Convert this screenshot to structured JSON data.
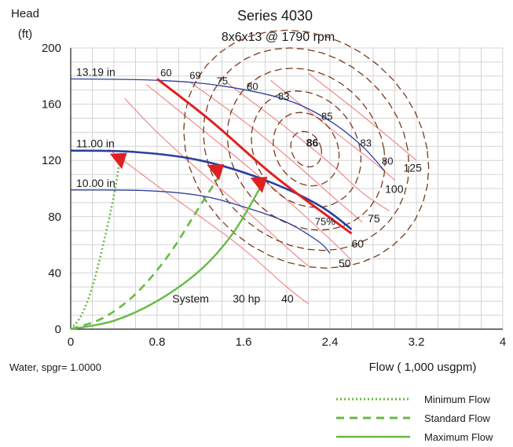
{
  "chart_data": {
    "type": "line",
    "title": "Series 4030",
    "subtitle": "8x6x13 @ 1790 rpm",
    "ylabel_line1": "Head",
    "ylabel_line2": "(ft)",
    "xlabel": "Flow ( 1,000 usgpm)",
    "footnote": "Water, spgr= 1.0000",
    "xlim": [
      0,
      4
    ],
    "ylim": [
      0,
      200
    ],
    "x_ticks": [
      0,
      0.8,
      1.6,
      2.4,
      3.2,
      4
    ],
    "x_tick_labels": [
      "0",
      "0.8",
      "1.6",
      "2.4",
      "3.2",
      "4"
    ],
    "y_ticks": [
      0,
      40,
      80,
      120,
      160,
      200
    ],
    "y_tick_labels": [
      "0",
      "40",
      "80",
      "120",
      "160",
      "200"
    ],
    "grid": true,
    "colors": {
      "impeller": "#2b3f9e",
      "efficiency": "#7a3a1c",
      "power": "#f08080",
      "operating": "#e02020",
      "system": "#66bb44"
    },
    "impeller_curves": [
      {
        "label": "13.19 in",
        "points": [
          [
            0,
            178
          ],
          [
            0.8,
            177
          ],
          [
            1.4,
            173
          ],
          [
            2.0,
            163
          ],
          [
            2.4,
            148
          ],
          [
            2.7,
            130
          ],
          [
            2.9,
            113
          ]
        ]
      },
      {
        "label": "11.00 in",
        "points": [
          [
            0,
            127
          ],
          [
            0.6,
            126
          ],
          [
            1.2,
            120
          ],
          [
            1.8,
            106
          ],
          [
            2.3,
            88
          ],
          [
            2.6,
            71
          ]
        ]
      },
      {
        "label": "10.00 in",
        "points": [
          [
            0,
            99
          ],
          [
            0.7,
            98.5
          ],
          [
            1.2,
            95
          ],
          [
            1.6,
            87
          ],
          [
            2.0,
            76
          ],
          [
            2.3,
            62
          ],
          [
            2.4,
            54
          ]
        ]
      }
    ],
    "efficiency_labels": [
      {
        "text": "60",
        "x": 0.83,
        "y": 180
      },
      {
        "text": "69",
        "x": 1.1,
        "y": 178
      },
      {
        "text": "75",
        "x": 1.35,
        "y": 174
      },
      {
        "text": "80",
        "x": 1.63,
        "y": 170
      },
      {
        "text": "83",
        "x": 1.92,
        "y": 163
      },
      {
        "text": "85",
        "x": 2.32,
        "y": 149
      },
      {
        "text": "86",
        "x": 2.18,
        "y": 130
      },
      {
        "text": "83",
        "x": 2.68,
        "y": 130
      },
      {
        "text": "80",
        "x": 2.88,
        "y": 117
      },
      {
        "text": "75%",
        "x": 2.26,
        "y": 74
      }
    ],
    "power_labels": [
      {
        "text": "125",
        "x": 3.08,
        "y": 112
      },
      {
        "text": "100",
        "x": 2.91,
        "y": 97
      },
      {
        "text": "75",
        "x": 2.75,
        "y": 76
      },
      {
        "text": "60",
        "x": 2.6,
        "y": 58
      },
      {
        "text": "50",
        "x": 2.48,
        "y": 44
      },
      {
        "text": "40",
        "x": 1.95,
        "y": 19
      },
      {
        "text": "30 hp",
        "x": 1.5,
        "y": 19
      }
    ],
    "power_curves": [
      [
        [
          0.5,
          164
        ],
        [
          0.8,
          140
        ],
        [
          1.2,
          112
        ],
        [
          1.6,
          86
        ],
        [
          2.0,
          58
        ],
        [
          2.2,
          45
        ]
      ],
      [
        [
          0.35,
          128
        ],
        [
          0.8,
          102
        ],
        [
          1.2,
          80
        ],
        [
          1.6,
          57
        ],
        [
          2.0,
          30
        ],
        [
          2.2,
          18
        ]
      ],
      [
        [
          0.7,
          174
        ],
        [
          1.2,
          143
        ],
        [
          1.6,
          118
        ],
        [
          2.0,
          92
        ],
        [
          2.4,
          64
        ],
        [
          2.6,
          49
        ]
      ],
      [
        [
          1.1,
          176
        ],
        [
          1.6,
          148
        ],
        [
          2.0,
          123
        ],
        [
          2.4,
          96
        ],
        [
          2.7,
          76
        ]
      ],
      [
        [
          1.45,
          175
        ],
        [
          2.0,
          143
        ],
        [
          2.4,
          118
        ],
        [
          2.7,
          97
        ],
        [
          2.95,
          84
        ]
      ],
      [
        [
          1.85,
          177
        ],
        [
          2.4,
          143
        ],
        [
          2.8,
          119
        ],
        [
          3.0,
          106
        ]
      ],
      [
        [
          2.2,
          182
        ],
        [
          2.6,
          158
        ],
        [
          3.0,
          133
        ],
        [
          3.2,
          120
        ]
      ]
    ],
    "operating_line": [
      [
        0.8,
        178
      ],
      [
        1.3,
        148
      ],
      [
        1.9,
        108
      ],
      [
        2.6,
        68
      ]
    ],
    "operating_markers": [
      {
        "x": 0.45,
        "y": 120
      },
      {
        "x": 1.35,
        "y": 112
      },
      {
        "x": 1.75,
        "y": 103
      }
    ],
    "system_label": {
      "text": "System",
      "x": 0.94,
      "y": 19
    },
    "system_curves": [
      {
        "name": "Minimum Flow",
        "dash": "dotted",
        "points": [
          [
            0,
            0
          ],
          [
            0.1,
            10
          ],
          [
            0.2,
            30
          ],
          [
            0.3,
            60
          ],
          [
            0.4,
            95
          ],
          [
            0.45,
            118
          ]
        ]
      },
      {
        "name": "Standard Flow",
        "dash": "dashed",
        "points": [
          [
            0,
            0
          ],
          [
            0.3,
            8
          ],
          [
            0.6,
            25
          ],
          [
            0.9,
            52
          ],
          [
            1.2,
            88
          ],
          [
            1.4,
            112
          ]
        ]
      },
      {
        "name": "Maximum Flow",
        "dash": "solid",
        "points": [
          [
            0,
            0
          ],
          [
            0.4,
            6
          ],
          [
            0.8,
            20
          ],
          [
            1.2,
            42
          ],
          [
            1.5,
            68
          ],
          [
            1.75,
            100
          ]
        ]
      }
    ],
    "legend": {
      "placement": "bottom-right",
      "entries": [
        {
          "label": "Minimum Flow",
          "dash": "dotted"
        },
        {
          "label": "Standard Flow",
          "dash": "dashed"
        },
        {
          "label": "Maximum Flow",
          "dash": "solid"
        }
      ]
    }
  }
}
